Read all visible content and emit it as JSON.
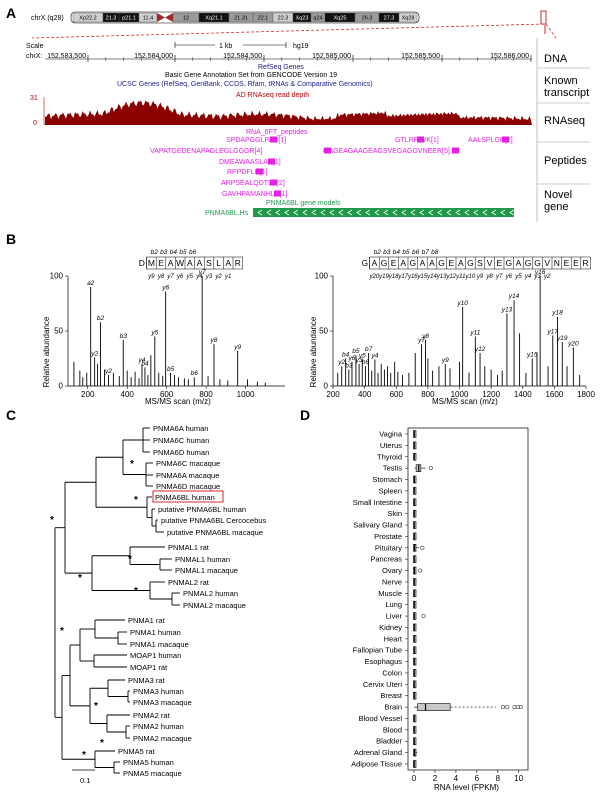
{
  "panel_labels": {
    "a": "A",
    "b": "B",
    "c": "C",
    "d": "D"
  },
  "panel_a": {
    "chrom_label": "chrX (q28)",
    "bands": [
      "Xp22.2",
      "21.3",
      "p21.1",
      "11.4",
      "12",
      "Xq21.1",
      "21.31",
      "22.1",
      "22.3",
      "Xq23",
      "q24",
      "Xq25",
      "26.3",
      "27.3",
      "Xq28"
    ],
    "scale_label": "Scale",
    "scale_value": "1 kb",
    "assembly": "hg19",
    "coord_label": "chrX:",
    "coords": [
      "152,583,500",
      "152,584,000",
      "152,584,500",
      "152,585,000",
      "152,585,500",
      "152,586,000"
    ],
    "refseq": "RefSeq Genes",
    "gencode": "Basic Gene Annotation Set from GENCODE Version 19",
    "ucsc": "UCSC Genes (RefSeq, GenBank, CCDS, Rfam, tRNAs & Comparative Genomics)",
    "rnaseq_title": "AD RNAseq read depth",
    "y_max": "31",
    "y_min": "0",
    "peptide_track": "RNA_6FT_peptides",
    "peptides": [
      "SPDAPGGLPAR[1]",
      "GTLRPLVK[1]",
      "AALSPLGR[2]",
      "VAPATGEDENAPAGLEGLGGGR[4]",
      "GAGEAGAAGEAGSVEGAGGVNEER[5]",
      "DMEAWAASLAR[1]",
      "RPPDFLR[1]",
      "ARPSEALQDTLR[2]",
      "GAVHPAMANHLR[1]"
    ],
    "gene_models_title": "PNMA6BL gene models",
    "gene_name": "PNMA6BL.Hs",
    "side_labels": [
      "DNA",
      "Known transcript",
      "RNAseq",
      "Peptides",
      "Novel gene"
    ]
  },
  "panel_b": {
    "left_seq": "DMEAWAASLAR",
    "right_seq": "GAGEAGAAGEAGSVEGAGGVNEER",
    "left_b_ions": [
      "b2",
      "b3",
      "b4",
      "b5",
      "b6"
    ],
    "left_y_ions": [
      "y9",
      "y8",
      "y7",
      "y6",
      "y5",
      "y4",
      "y3",
      "y2",
      "y1"
    ],
    "right_b_ions": [
      "b2",
      "b3",
      "b4",
      "b5",
      "b6",
      "b7",
      "b8"
    ],
    "right_y_ions": [
      "y20",
      "y19",
      "y18",
      "y17",
      "y16",
      "y15",
      "y14",
      "y13",
      "y12",
      "y11",
      "y10",
      "y9",
      "y8",
      "y7",
      "y6",
      "y5",
      "y4",
      "y3",
      "y2"
    ],
    "y_label": "Relative abundance",
    "x_label": "MS/MS scan (m/z)"
  },
  "panel_c": {
    "tree_leaves": [
      "PNMA6A human",
      "PNMA6C human",
      "PNMA6D human",
      "PNMA6C macaque",
      "PNMA6A macaque",
      "PNMA6D macaque",
      "PNMA6BL human",
      "putative PNMA6BL human",
      "putative PNMA6BL Cercocebus",
      "putative PNMA6BL macaque",
      "PNMAL1 rat",
      "PNMAL1 human",
      "PNMAL1 macaque",
      "PNMAL2 rat",
      "PNMAL2 human",
      "PNMAL2 macaque",
      "PNMA1 rat",
      "PNMA1 human",
      "PNMA1 macaque",
      "MOAP1 human",
      "MOAP1 rat",
      "PNMA3 rat",
      "PNMA3 human",
      "PNMA3 macaque",
      "PNMA2 rat",
      "PNMA2 human",
      "PNMA2 macaque",
      "PNMA5 rat",
      "PNMA5 human",
      "PNMA5 macaque"
    ],
    "highlight": "PNMA6BL human",
    "star": "*",
    "scale_bar": "0.1"
  },
  "panel_d": {
    "tissues": [
      "Vagina",
      "Uterus",
      "Thyroid",
      "Testis",
      "Stomach",
      "Spleen",
      "Small Intestine",
      "Skin",
      "Salivary Gland",
      "Prostate",
      "Pituitary",
      "Pancreas",
      "Ovary",
      "Nerve",
      "Muscle",
      "Lung",
      "Liver",
      "Kidney",
      "Heart",
      "Fallopian Tube",
      "Esophagus",
      "Colon",
      "Cervix Uteri",
      "Breast",
      "Brain",
      "Blood Vessel",
      "Blood",
      "Bladder",
      "Adrenal Gland",
      "Adipose Tissue"
    ],
    "x_ticks": [
      "0",
      "2",
      "4",
      "6",
      "8",
      "10"
    ],
    "x_label": "RNA level (FPKM)"
  },
  "chart_data": [
    {
      "type": "bar",
      "title": "",
      "xlabel": "MS/MS scan (m/z)",
      "ylabel": "Relative abundance",
      "xlim": [
        100,
        1200
      ],
      "ylim": [
        0,
        100
      ],
      "x_ticks": [
        200,
        400,
        600,
        800,
        1000
      ],
      "y_ticks": [
        0,
        50,
        100
      ],
      "peaks": [
        [
          130,
          22
        ],
        [
          160,
          14
        ],
        [
          175,
          8
        ],
        [
          195,
          12
        ],
        [
          215,
          90
        ],
        [
          235,
          26
        ],
        [
          250,
          20
        ],
        [
          265,
          58
        ],
        [
          285,
          15
        ],
        [
          305,
          10
        ],
        [
          330,
          12
        ],
        [
          360,
          9
        ],
        [
          380,
          42
        ],
        [
          400,
          14
        ],
        [
          420,
          8
        ],
        [
          440,
          13
        ],
        [
          460,
          7
        ],
        [
          475,
          20
        ],
        [
          490,
          17
        ],
        [
          505,
          10
        ],
        [
          520,
          28
        ],
        [
          540,
          45
        ],
        [
          560,
          12
        ],
        [
          580,
          9
        ],
        [
          595,
          86
        ],
        [
          620,
          12
        ],
        [
          640,
          10
        ],
        [
          660,
          8
        ],
        [
          690,
          7
        ],
        [
          710,
          6
        ],
        [
          740,
          8
        ],
        [
          780,
          100
        ],
        [
          810,
          9
        ],
        [
          840,
          38
        ],
        [
          870,
          6
        ],
        [
          910,
          5
        ],
        [
          960,
          32
        ],
        [
          1010,
          6
        ],
        [
          1060,
          4
        ],
        [
          1100,
          3
        ]
      ],
      "labels": [
        [
          "a2",
          215,
          90
        ],
        [
          "b2",
          265,
          58
        ],
        [
          "y2",
          235,
          26
        ],
        [
          "y2",
          305,
          10
        ],
        [
          "b3",
          380,
          42
        ],
        [
          "y4",
          475,
          20
        ],
        [
          "b4",
          490,
          17
        ],
        [
          "y5",
          540,
          45
        ],
        [
          "y6",
          595,
          86
        ],
        [
          "b5",
          620,
          12
        ],
        [
          "b6",
          740,
          8
        ],
        [
          "y7",
          780,
          100
        ],
        [
          "y8",
          840,
          38
        ],
        [
          "y9",
          960,
          32
        ]
      ]
    },
    {
      "type": "bar",
      "title": "",
      "xlabel": "MS/MS scan (m/z)",
      "ylabel": "Relative abundance",
      "xlim": [
        200,
        1800
      ],
      "ylim": [
        0,
        100
      ],
      "x_ticks": [
        200,
        400,
        600,
        800,
        1000,
        1200,
        1400,
        1600,
        1800
      ],
      "y_ticks": [
        0,
        50,
        100
      ],
      "peaks": [
        [
          230,
          12
        ],
        [
          255,
          18
        ],
        [
          280,
          25
        ],
        [
          300,
          15
        ],
        [
          320,
          22
        ],
        [
          345,
          28
        ],
        [
          365,
          20
        ],
        [
          385,
          24
        ],
        [
          405,
          18
        ],
        [
          425,
          30
        ],
        [
          445,
          14
        ],
        [
          465,
          24
        ],
        [
          485,
          12
        ],
        [
          505,
          20
        ],
        [
          525,
          15
        ],
        [
          545,
          18
        ],
        [
          565,
          12
        ],
        [
          590,
          22
        ],
        [
          610,
          13
        ],
        [
          640,
          10
        ],
        [
          680,
          12
        ],
        [
          720,
          30
        ],
        [
          760,
          38
        ],
        [
          785,
          42
        ],
        [
          800,
          25
        ],
        [
          830,
          14
        ],
        [
          870,
          18
        ],
        [
          910,
          20
        ],
        [
          940,
          16
        ],
        [
          1000,
          22
        ],
        [
          1020,
          72
        ],
        [
          1060,
          12
        ],
        [
          1100,
          45
        ],
        [
          1130,
          30
        ],
        [
          1160,
          18
        ],
        [
          1200,
          15
        ],
        [
          1240,
          10
        ],
        [
          1270,
          14
        ],
        [
          1300,
          66
        ],
        [
          1345,
          78
        ],
        [
          1380,
          48
        ],
        [
          1420,
          12
        ],
        [
          1460,
          25
        ],
        [
          1490,
          30
        ],
        [
          1510,
          100
        ],
        [
          1560,
          18
        ],
        [
          1590,
          46
        ],
        [
          1620,
          63
        ],
        [
          1650,
          40
        ],
        [
          1680,
          18
        ],
        [
          1720,
          35
        ],
        [
          1760,
          10
        ]
      ],
      "labels": [
        [
          "y2",
          255,
          18
        ],
        [
          "b4",
          280,
          25
        ],
        [
          "b5",
          345,
          28
        ],
        [
          "y6",
          320,
          22
        ],
        [
          "b7",
          425,
          30
        ],
        [
          "y4",
          465,
          24
        ],
        [
          "y5",
          385,
          24
        ],
        [
          "y3",
          365,
          20
        ],
        [
          "b6",
          405,
          18
        ],
        [
          "b3",
          300,
          15
        ],
        [
          "y7",
          760,
          38
        ],
        [
          "y8",
          785,
          42
        ],
        [
          "y9",
          910,
          20
        ],
        [
          "y10",
          1020,
          72
        ],
        [
          "y11",
          1100,
          45
        ],
        [
          "y12",
          1130,
          30
        ],
        [
          "y13",
          1300,
          66
        ],
        [
          "y14",
          1345,
          78
        ],
        [
          "y15",
          1460,
          25
        ],
        [
          "y16",
          1510,
          100
        ],
        [
          "y17",
          1590,
          46
        ],
        [
          "y18",
          1620,
          63
        ],
        [
          "y19",
          1650,
          40
        ],
        [
          "y20",
          1720,
          35
        ]
      ]
    },
    {
      "type": "box",
      "title": "",
      "xlabel": "RNA level (FPKM)",
      "xlim": [
        0,
        10.5
      ],
      "x_ticks": [
        0,
        2,
        4,
        6,
        8,
        10
      ],
      "series": [
        {
          "category": "Vagina",
          "q1": 0,
          "median": 0.02,
          "q3": 0.04,
          "wlow": 0,
          "whigh": 0.1,
          "outliers": []
        },
        {
          "category": "Uterus",
          "q1": 0,
          "median": 0.02,
          "q3": 0.04,
          "wlow": 0,
          "whigh": 0.1,
          "outliers": []
        },
        {
          "category": "Thyroid",
          "q1": 0,
          "median": 0.02,
          "q3": 0.05,
          "wlow": 0,
          "whigh": 0.12,
          "outliers": []
        },
        {
          "category": "Testis",
          "q1": 0.25,
          "median": 0.45,
          "q3": 0.7,
          "wlow": 0.05,
          "whigh": 1.1,
          "outliers": [
            1.6
          ]
        },
        {
          "category": "Stomach",
          "q1": 0,
          "median": 0.03,
          "q3": 0.08,
          "wlow": 0,
          "whigh": 0.25,
          "outliers": []
        },
        {
          "category": "Spleen",
          "q1": 0,
          "median": 0.02,
          "q3": 0.04,
          "wlow": 0,
          "whigh": 0.1,
          "outliers": []
        },
        {
          "category": "Small Intestine",
          "q1": 0,
          "median": 0.02,
          "q3": 0.04,
          "wlow": 0,
          "whigh": 0.1,
          "outliers": []
        },
        {
          "category": "Skin",
          "q1": 0,
          "median": 0.02,
          "q3": 0.04,
          "wlow": 0,
          "whigh": 0.1,
          "outliers": []
        },
        {
          "category": "Salivary Gland",
          "q1": 0,
          "median": 0.02,
          "q3": 0.04,
          "wlow": 0,
          "whigh": 0.1,
          "outliers": []
        },
        {
          "category": "Prostate",
          "q1": 0,
          "median": 0.02,
          "q3": 0.04,
          "wlow": 0,
          "whigh": 0.1,
          "outliers": []
        },
        {
          "category": "Pituitary",
          "q1": 0,
          "median": 0.05,
          "q3": 0.2,
          "wlow": 0,
          "whigh": 0.5,
          "outliers": [
            0.8
          ]
        },
        {
          "category": "Pancreas",
          "q1": 0,
          "median": 0.02,
          "q3": 0.04,
          "wlow": 0,
          "whigh": 0.1,
          "outliers": []
        },
        {
          "category": "Ovary",
          "q1": 0,
          "median": 0.03,
          "q3": 0.06,
          "wlow": 0,
          "whigh": 0.15,
          "outliers": [
            0.6
          ]
        },
        {
          "category": "Nerve",
          "q1": 0,
          "median": 0.02,
          "q3": 0.04,
          "wlow": 0,
          "whigh": 0.1,
          "outliers": []
        },
        {
          "category": "Muscle",
          "q1": 0,
          "median": 0.02,
          "q3": 0.04,
          "wlow": 0,
          "whigh": 0.1,
          "outliers": []
        },
        {
          "category": "Lung",
          "q1": 0,
          "median": 0.02,
          "q3": 0.04,
          "wlow": 0,
          "whigh": 0.1,
          "outliers": []
        },
        {
          "category": "Liver",
          "q1": 0,
          "median": 0.02,
          "q3": 0.04,
          "wlow": 0,
          "whigh": 0.1,
          "outliers": [
            0.9
          ]
        },
        {
          "category": "Kidney",
          "q1": 0,
          "median": 0.02,
          "q3": 0.04,
          "wlow": 0,
          "whigh": 0.1,
          "outliers": []
        },
        {
          "category": "Heart",
          "q1": 0,
          "median": 0.02,
          "q3": 0.04,
          "wlow": 0,
          "whigh": 0.1,
          "outliers": []
        },
        {
          "category": "Fallopian Tube",
          "q1": 0,
          "median": 0.02,
          "q3": 0.04,
          "wlow": 0,
          "whigh": 0.1,
          "outliers": []
        },
        {
          "category": "Esophagus",
          "q1": 0,
          "median": 0.02,
          "q3": 0.04,
          "wlow": 0,
          "whigh": 0.1,
          "outliers": []
        },
        {
          "category": "Colon",
          "q1": 0,
          "median": 0.02,
          "q3": 0.04,
          "wlow": 0,
          "whigh": 0.1,
          "outliers": []
        },
        {
          "category": "Cervix Uteri",
          "q1": 0,
          "median": 0.02,
          "q3": 0.04,
          "wlow": 0,
          "whigh": 0.1,
          "outliers": []
        },
        {
          "category": "Breast",
          "q1": 0,
          "median": 0.02,
          "q3": 0.04,
          "wlow": 0,
          "whigh": 0.1,
          "outliers": []
        },
        {
          "category": "Brain",
          "q1": 0.4,
          "median": 1.1,
          "q3": 3.5,
          "wlow": 0,
          "whigh": 7.8,
          "outliers": [
            8.5,
            8.9,
            9.6,
            9.9,
            10.2
          ]
        },
        {
          "category": "Blood Vessel",
          "q1": 0,
          "median": 0.02,
          "q3": 0.04,
          "wlow": 0,
          "whigh": 0.1,
          "outliers": []
        },
        {
          "category": "Blood",
          "q1": 0,
          "median": 0.02,
          "q3": 0.04,
          "wlow": 0,
          "whigh": 0.1,
          "outliers": []
        },
        {
          "category": "Bladder",
          "q1": 0,
          "median": 0.02,
          "q3": 0.04,
          "wlow": 0,
          "whigh": 0.1,
          "outliers": []
        },
        {
          "category": "Adrenal Gland",
          "q1": 0,
          "median": 0.05,
          "q3": 0.15,
          "wlow": 0,
          "whigh": 0.3,
          "outliers": []
        },
        {
          "category": "Adipose Tissue",
          "q1": 0,
          "median": 0.02,
          "q3": 0.04,
          "wlow": 0,
          "whigh": 0.1,
          "outliers": []
        }
      ]
    }
  ],
  "colors": {
    "rnaseq": "#8b0000",
    "peptide": "#e61ee6",
    "gene_model": "#1f9a4d",
    "refseq": "#1a1a8c",
    "highlight_box": "#d62728",
    "chrom_dark": "#111111",
    "chrom_gray": "#9a9a9a",
    "centromere": "#a0282d"
  }
}
